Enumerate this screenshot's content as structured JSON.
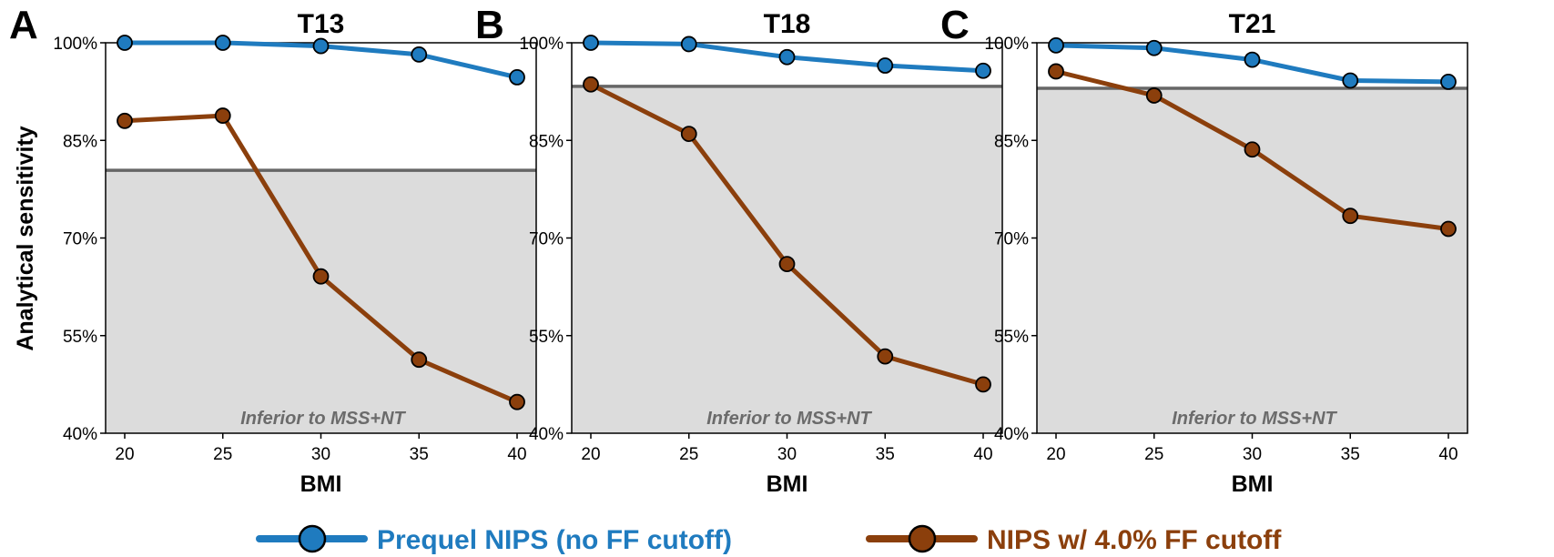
{
  "colors": {
    "series_1": "#1f7bbf",
    "series_2": "#8b3f0c",
    "inferior_region": "#dcdcdc",
    "threshold_line": "#666666"
  },
  "y_axis_label": "Analytical sensitivity",
  "legend": [
    {
      "label": "Prequel NIPS (no FF cutoff)",
      "color": "#1f7bbf"
    },
    {
      "label": "NIPS w/ 4.0% FF cutoff",
      "color": "#8b3f0c"
    }
  ],
  "chart_data": [
    {
      "type": "line",
      "panel": "A",
      "title": "T13",
      "xlabel": "BMI",
      "ylabel": "Analytical sensitivity",
      "x": [
        20,
        25,
        30,
        35,
        40
      ],
      "xticks": [
        "20",
        "25",
        "30",
        "35",
        "40"
      ],
      "ylim": [
        40,
        100
      ],
      "yticks": [
        "40%",
        "55%",
        "70%",
        "85%",
        "100%"
      ],
      "threshold": 80.4,
      "region_label": "Inferior to MSS+NT",
      "series": [
        {
          "name": "Prequel NIPS (no FF cutoff)",
          "values": [
            100.0,
            100.0,
            99.5,
            98.2,
            94.7
          ]
        },
        {
          "name": "NIPS w/ 4.0% FF cutoff",
          "values": [
            88.0,
            88.8,
            64.1,
            51.3,
            44.8
          ]
        }
      ]
    },
    {
      "type": "line",
      "panel": "B",
      "title": "T18",
      "xlabel": "BMI",
      "ylabel": "",
      "x": [
        20,
        25,
        30,
        35,
        40
      ],
      "xticks": [
        "20",
        "25",
        "30",
        "35",
        "40"
      ],
      "ylim": [
        40,
        100
      ],
      "yticks": [
        "40%",
        "55%",
        "70%",
        "85%",
        "100%"
      ],
      "threshold": 93.3,
      "region_label": "Inferior to MSS+NT",
      "series": [
        {
          "name": "Prequel NIPS (no FF cutoff)",
          "values": [
            100.0,
            99.8,
            97.8,
            96.5,
            95.7
          ]
        },
        {
          "name": "NIPS w/ 4.0% FF cutoff",
          "values": [
            93.6,
            86.0,
            66.0,
            51.8,
            47.5
          ]
        }
      ]
    },
    {
      "type": "line",
      "panel": "C",
      "title": "T21",
      "xlabel": "BMI",
      "ylabel": "",
      "x": [
        20,
        25,
        30,
        35,
        40
      ],
      "xticks": [
        "20",
        "25",
        "30",
        "35",
        "40"
      ],
      "ylim": [
        40,
        100
      ],
      "yticks": [
        "40%",
        "55%",
        "70%",
        "85%",
        "100%"
      ],
      "threshold": 93.0,
      "region_label": "Inferior to MSS+NT",
      "series": [
        {
          "name": "Prequel NIPS (no FF cutoff)",
          "values": [
            99.6,
            99.2,
            97.4,
            94.2,
            94.0
          ]
        },
        {
          "name": "NIPS w/ 4.0% FF cutoff",
          "values": [
            95.6,
            91.9,
            83.6,
            73.4,
            71.4
          ]
        }
      ]
    }
  ]
}
